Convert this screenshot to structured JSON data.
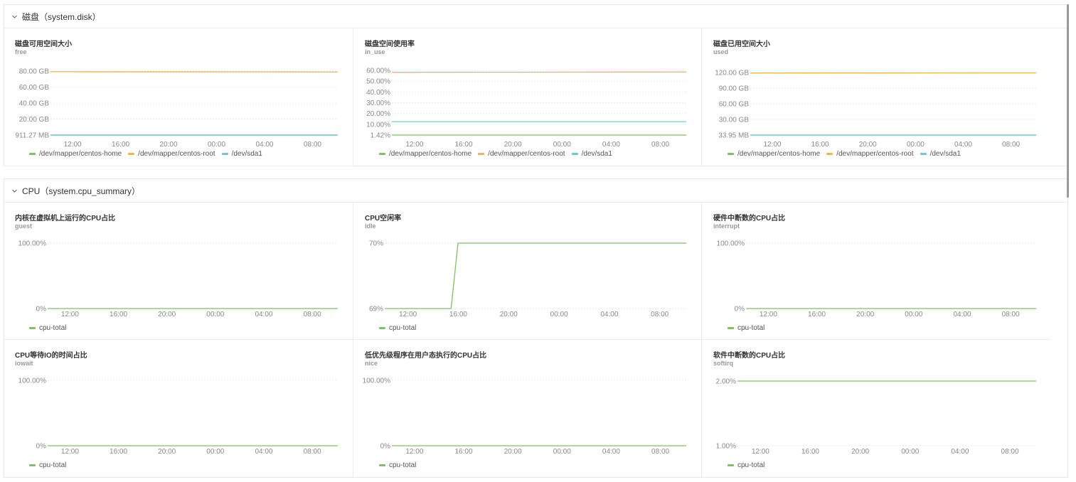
{
  "colors": {
    "green": "#7fbf6a",
    "yellow": "#e8b94a",
    "cyan": "#6fc8d0",
    "grid": "#e9e9e9",
    "axis": "#888888"
  },
  "sections": [
    {
      "label": "磁盘（system.disk）"
    },
    {
      "label": "CPU（system.cpu_summary）"
    }
  ],
  "panels": [
    {
      "title": "磁盘可用空间大小",
      "subtitle": "free",
      "legend": [
        {
          "label": "/dev/mapper/centos-home",
          "color": "green"
        },
        {
          "label": "/dev/mapper/centos-root",
          "color": "yellow"
        },
        {
          "label": "/dev/sda1",
          "color": "cyan"
        }
      ],
      "chart_data": {
        "type": "line",
        "yticks": [
          "80.00 GB",
          "60.00 GB",
          "40.00 GB",
          "20.00 GB",
          "911.27 MB"
        ],
        "xticks": [
          "12:00",
          "16:00",
          "20:00",
          "00:00",
          "04:00",
          "08:00"
        ],
        "ylim": [
          0.89,
          82
        ],
        "series": [
          {
            "name": "/dev/mapper/centos-home",
            "color": "green",
            "values": [
              0.95,
              0.95
            ]
          },
          {
            "name": "/dev/mapper/centos-root",
            "color": "yellow",
            "values": [
              81.2,
              80.9
            ]
          },
          {
            "name": "/dev/sda1",
            "color": "cyan",
            "values": [
              0.89,
              0.89
            ]
          }
        ]
      }
    },
    {
      "title": "磁盘空间使用率",
      "subtitle": "in_use",
      "legend": [
        {
          "label": "/dev/mapper/centos-home",
          "color": "green"
        },
        {
          "label": "/dev/mapper/centos-root",
          "color": "yellow"
        },
        {
          "label": "/dev/sda1",
          "color": "cyan"
        }
      ],
      "chart_data": {
        "type": "line",
        "yticks": [
          "60.00%",
          "50.00%",
          "40.00%",
          "30.00%",
          "20.00%",
          "10.00%",
          "1.42%"
        ],
        "xticks": [
          "12:00",
          "16:00",
          "20:00",
          "00:00",
          "04:00",
          "08:00"
        ],
        "ylim": [
          1.42,
          62
        ],
        "series": [
          {
            "name": "/dev/mapper/centos-home",
            "color": "green",
            "values": [
              1.42,
              1.42
            ]
          },
          {
            "name": "/dev/mapper/centos-root",
            "color": "yellow",
            "values": [
              60.2,
              60.5
            ]
          },
          {
            "name": "/dev/sda1",
            "color": "cyan",
            "values": [
              14.0,
              14.0
            ]
          }
        ]
      }
    },
    {
      "title": "磁盘已用空间大小",
      "subtitle": "used",
      "legend": [
        {
          "label": "/dev/mapper/centos-home",
          "color": "green"
        },
        {
          "label": "/dev/mapper/centos-root",
          "color": "yellow"
        },
        {
          "label": "/dev/sda1",
          "color": "cyan"
        }
      ],
      "chart_data": {
        "type": "line",
        "yticks": [
          "120.00 GB",
          "90.00 GB",
          "60.00 GB",
          "30.00 GB",
          "33.95 MB"
        ],
        "xticks": [
          "12:00",
          "16:00",
          "20:00",
          "00:00",
          "04:00",
          "08:00"
        ],
        "ylim": [
          0.034,
          122
        ],
        "series": [
          {
            "name": "/dev/mapper/centos-home",
            "color": "green",
            "values": [
              0.05,
              0.05
            ]
          },
          {
            "name": "/dev/mapper/centos-root",
            "color": "yellow",
            "values": [
              121.0,
              121.3
            ]
          },
          {
            "name": "/dev/sda1",
            "color": "cyan",
            "values": [
              0.034,
              0.034
            ]
          }
        ]
      }
    },
    {
      "title": "内核在虚拟机上运行的CPU占比",
      "subtitle": "guest",
      "legend": [
        {
          "label": "cpu-total",
          "color": "green"
        }
      ],
      "chart_data": {
        "type": "line",
        "yticks": [
          "100.00%",
          "0%"
        ],
        "xticks": [
          "12:00",
          "16:00",
          "20:00",
          "00:00",
          "04:00",
          "08:00"
        ],
        "ylim": [
          0,
          100
        ],
        "series": [
          {
            "name": "cpu-total",
            "color": "green",
            "values": [
              0,
              0
            ]
          }
        ]
      }
    },
    {
      "title": "CPU空闲率",
      "subtitle": "idle",
      "legend": [
        {
          "label": "cpu-total",
          "color": "green"
        }
      ],
      "chart_data": {
        "type": "line",
        "yticks": [
          "70%",
          "69%"
        ],
        "xticks": [
          "12:00",
          "16:00",
          "20:00",
          "00:00",
          "04:00",
          "08:00"
        ],
        "ylim": [
          69,
          70
        ],
        "series": [
          {
            "name": "cpu-total",
            "color": "green",
            "points": [
              [
                0,
                69
              ],
              [
                0.22,
                69
              ],
              [
                0.243,
                70
              ],
              [
                1,
                70
              ]
            ]
          }
        ]
      }
    },
    {
      "title": "硬件中断数的CPU占比",
      "subtitle": "interrupt",
      "legend": [
        {
          "label": "cpu-total",
          "color": "green"
        }
      ],
      "chart_data": {
        "type": "line",
        "yticks": [
          "100.00%",
          "0%"
        ],
        "xticks": [
          "12:00",
          "16:00",
          "20:00",
          "00:00",
          "04:00",
          "08:00"
        ],
        "ylim": [
          0,
          100
        ],
        "series": [
          {
            "name": "cpu-total",
            "color": "green",
            "values": [
              0,
              0
            ]
          }
        ]
      }
    },
    {
      "title": "CPU等待IO的时间占比",
      "subtitle": "iowait",
      "legend": [
        {
          "label": "cpu-total",
          "color": "green"
        }
      ],
      "chart_data": {
        "type": "line",
        "yticks": [
          "100.00%",
          "0%"
        ],
        "xticks": [
          "12:00",
          "16:00",
          "20:00",
          "00:00",
          "04:00",
          "08:00"
        ],
        "ylim": [
          0,
          100
        ],
        "series": [
          {
            "name": "cpu-total",
            "color": "green",
            "values": [
              0,
              0
            ]
          }
        ]
      }
    },
    {
      "title": "低优先级程序在用户态执行的CPU占比",
      "subtitle": "nice",
      "legend": [
        {
          "label": "cpu-total",
          "color": "green"
        }
      ],
      "chart_data": {
        "type": "line",
        "yticks": [
          "100.00%",
          "0%"
        ],
        "xticks": [
          "12:00",
          "16:00",
          "20:00",
          "00:00",
          "04:00",
          "08:00"
        ],
        "ylim": [
          0,
          100
        ],
        "series": [
          {
            "name": "cpu-total",
            "color": "green",
            "values": [
              0,
              0
            ]
          }
        ]
      }
    },
    {
      "title": "软件中断数的CPU占比",
      "subtitle": "softirq",
      "legend": [
        {
          "label": "cpu-total",
          "color": "green"
        }
      ],
      "chart_data": {
        "type": "line",
        "yticks": [
          "2.00%",
          "1.00%"
        ],
        "xticks": [
          "12:00",
          "16:00",
          "20:00",
          "00:00",
          "04:00",
          "08:00"
        ],
        "ylim": [
          1,
          2
        ],
        "series": [
          {
            "name": "cpu-total",
            "color": "green",
            "values": [
              2,
              2
            ]
          }
        ]
      }
    }
  ]
}
